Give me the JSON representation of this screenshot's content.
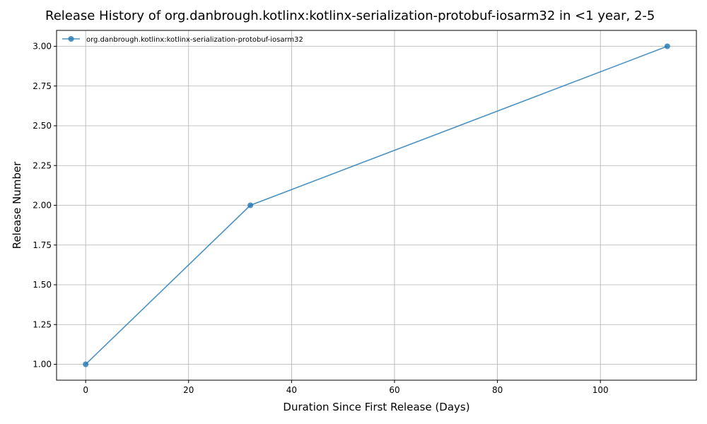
{
  "chart_data": {
    "type": "line",
    "title": "Release History of org.danbrough.kotlinx:kotlinx-serialization-protobuf-iosarm32 in <1 year, 2-5",
    "xlabel": "Duration Since First Release (Days)",
    "ylabel": "Release Number",
    "xlim": [
      -5.65,
      118.65
    ],
    "ylim": [
      0.9,
      3.1
    ],
    "x_ticks": [
      0,
      20,
      40,
      60,
      80,
      100
    ],
    "y_ticks": [
      1.0,
      1.25,
      1.5,
      1.75,
      2.0,
      2.25,
      2.5,
      2.75,
      3.0
    ],
    "y_tick_labels": [
      "1.00",
      "1.25",
      "1.50",
      "1.75",
      "2.00",
      "2.25",
      "2.50",
      "2.75",
      "3.00"
    ],
    "grid": true,
    "legend_position": "upper-left",
    "series": [
      {
        "name": "org.danbrough.kotlinx:kotlinx-serialization-protobuf-iosarm32",
        "color": "#1f77b4",
        "marker": "circle",
        "x": [
          0,
          32,
          113
        ],
        "y": [
          1,
          2,
          3
        ]
      }
    ]
  }
}
